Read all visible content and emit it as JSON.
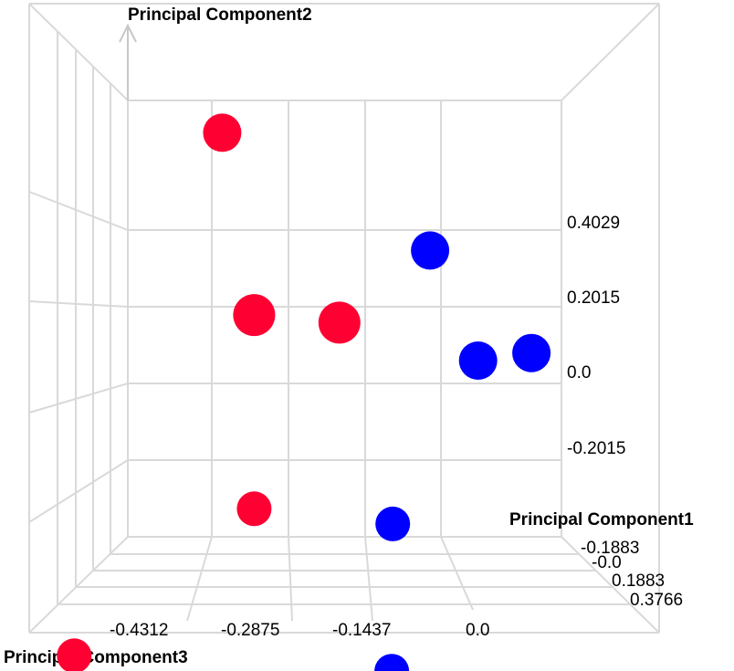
{
  "chart_data": {
    "type": "scatter",
    "projection": "3d",
    "axes": {
      "x": {
        "label": "Principal Component3",
        "ticks": [
          "-0.4312",
          "-0.2875",
          "-0.1437",
          "0.0"
        ]
      },
      "y": {
        "label": "Principal Component2",
        "ticks": [
          "0.4029",
          "0.2015",
          "0.0",
          "-0.2015"
        ]
      },
      "z": {
        "label": "Principal Component1",
        "ticks": [
          "-0.1883",
          "-0.0",
          "0.1883",
          "0.3766"
        ]
      }
    },
    "series": [
      {
        "color": "#ff0033",
        "points": [
          {
            "x": -0.46,
            "y": 0.66,
            "z": 0.0
          },
          {
            "x": -0.4,
            "y": 0.18,
            "z": 0.0
          },
          {
            "x": -0.24,
            "y": 0.16,
            "z": 0.0
          },
          {
            "x": -0.4,
            "y": -0.33,
            "z": 0.0
          },
          {
            "x": -0.56,
            "y": -0.47,
            "z": 0.25
          }
        ]
      },
      {
        "color": "#0000ff",
        "points": [
          {
            "x": -0.07,
            "y": 0.35,
            "z": 0.0
          },
          {
            "x": 0.02,
            "y": 0.06,
            "z": 0.0
          },
          {
            "x": 0.12,
            "y": 0.08,
            "z": 0.0
          },
          {
            "x": -0.14,
            "y": -0.37,
            "z": 0.0
          },
          {
            "x": 0.0,
            "y": -0.56,
            "z": 0.2
          }
        ]
      }
    ],
    "grid": true,
    "legend": "none"
  }
}
